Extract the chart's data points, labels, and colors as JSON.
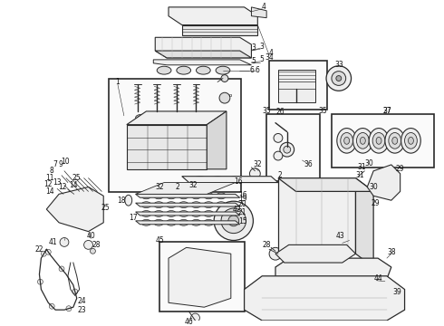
{
  "bg_color": "#ffffff",
  "lc": "#2a2a2a",
  "fig_w": 4.9,
  "fig_h": 3.6,
  "dpi": 100
}
